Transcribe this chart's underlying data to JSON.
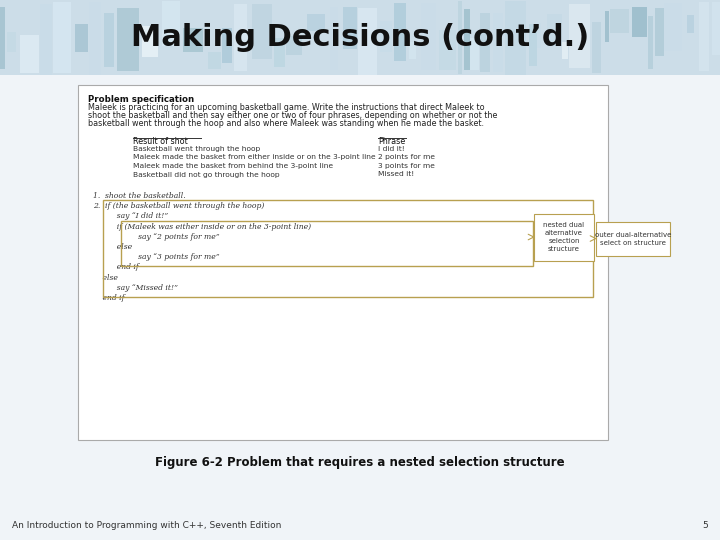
{
  "title": "Making Decisions (cont’d.)",
  "title_fontsize": 22,
  "title_color": "#111111",
  "bg_color": "#f0f4f8",
  "figure_caption": "Figure 6-2 Problem that requires a nested selection structure",
  "footer_text": "An Introduction to Programming with C++, Seventh Edition",
  "footer_page": "5",
  "problem_spec_bold": "Problem specification",
  "problem_spec_line1": "Maleek is practicing for an upcoming basketball game. Write the instructions that direct Maleek to",
  "problem_spec_line2": "shoot the basketball and then say either one or two of four phrases, depending on whether or not the",
  "problem_spec_line3": "basketball went through the hoop and also where Maleek was standing when he made the basket.",
  "table_header_left": "Result of shot",
  "table_header_right": "Phrase",
  "table_rows": [
    [
      "Basketball went through the hoop",
      "I did it!"
    ],
    [
      "Maleek made the basket from either inside or on the 3-point line",
      "2 points for me"
    ],
    [
      "Maleek made the basket from behind the 3-point line",
      "3 points for me"
    ],
    [
      "Basketball did not go through the hoop",
      "Missed it!"
    ]
  ],
  "code_lines": [
    "1.  shoot the basketball.",
    "2.  if (the basketball went through the hoop)",
    "          say “I did it!”",
    "          if (Maleek was either inside or on the 3-point line)",
    "                   say “2 points for me”",
    "          else",
    "                   say “3 points for me”",
    "          end if",
    "    else",
    "          say “Missed it!”",
    "    end if"
  ],
  "outer_box_color": "#b8a050",
  "inner_box_color": "#b8a050",
  "nested_label": "nested dual\nalternative\nselection\nstructure",
  "outer_label": "outer dual-alternative\nselect on structure",
  "main_box_bg": "#ffffff",
  "main_box_border": "#aaaaaa",
  "header_colors": [
    "#c8dce8",
    "#b0ccd8",
    "#98bcc8",
    "#d8eaf4",
    "#a8c8d8",
    "#b8d4e0",
    "#e0eef6",
    "#88b0c0",
    "#c0d8e4",
    "#f0f8fc"
  ]
}
